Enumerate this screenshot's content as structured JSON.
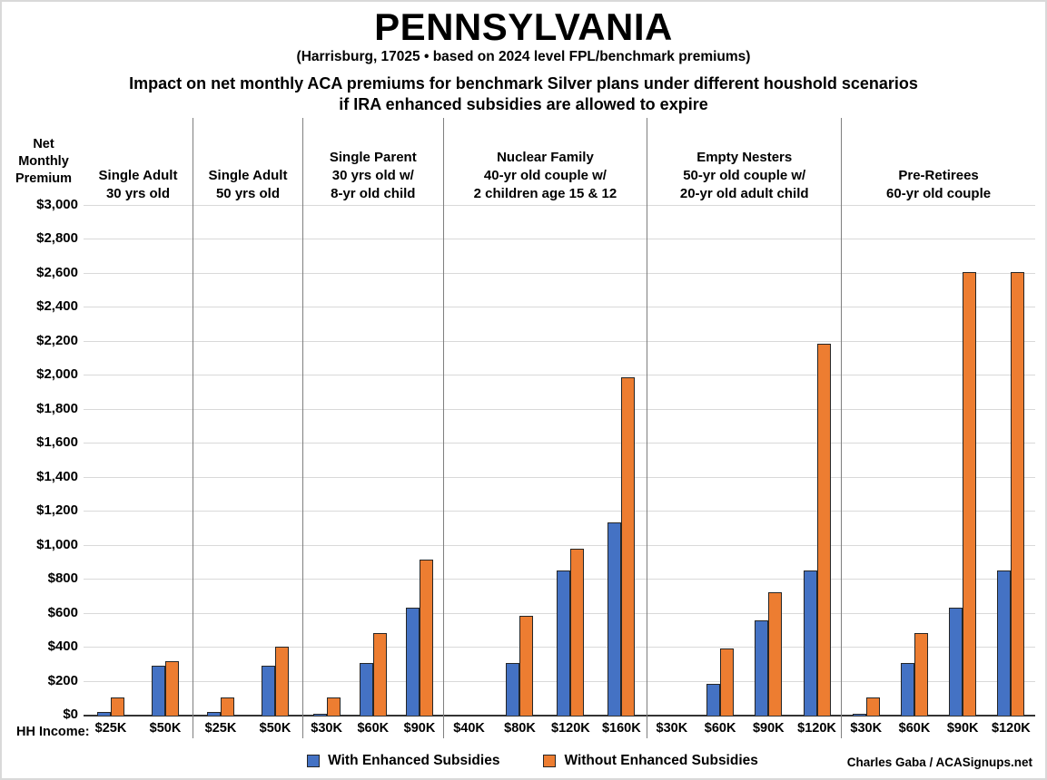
{
  "header": {
    "title": "PENNSYLVANIA",
    "subtitle": "(Harrisburg, 17025 • based on 2024 level FPL/benchmark premiums)",
    "heading_line1": "Impact on net monthly ACA premiums for benchmark Silver plans under different houshold scenarios",
    "heading_line2": "if IRA enhanced subsidies are allowed to expire"
  },
  "axis": {
    "y_title_lines": [
      "Net",
      "Monthly",
      "Premium"
    ],
    "hh_income_label": "HH Income:",
    "y_ticks": [
      "$3,000",
      "$2,800",
      "$2,600",
      "$2,400",
      "$2,200",
      "$2,000",
      "$1,800",
      "$1,600",
      "$1,400",
      "$1,200",
      "$1,000",
      "$800",
      "$600",
      "$400",
      "$200",
      "$0"
    ],
    "y_max": 3000
  },
  "legend": [
    {
      "label": "With Enhanced Subsidies",
      "color": "#4472C4"
    },
    {
      "label": "Without Enhanced Subsidies",
      "color": "#ED7D31"
    }
  ],
  "credit": "Charles Gaba / ACASignups.net",
  "chart_data": {
    "type": "bar",
    "title": "Impact on net monthly ACA premiums for benchmark Silver plans under different houshold scenarios if IRA enhanced subsidies are allowed to expire",
    "location": "Pennsylvania (Harrisburg, 17025)",
    "ylabel": "Net Monthly Premium ($)",
    "ylim": [
      0,
      3000
    ],
    "grid": true,
    "legend_position": "bottom",
    "series_names": [
      "With Enhanced Subsidies",
      "Without Enhanced Subsidies"
    ],
    "colors": {
      "with_enhanced": "#4472C4",
      "without_enhanced": "#ED7D31"
    },
    "groups": [
      {
        "label": [
          "Single Adult",
          "30 yrs old"
        ],
        "incomes": [
          "$25K",
          "$50K"
        ],
        "with_enhanced": [
          20,
          290
        ],
        "without_enhanced": [
          105,
          320
        ]
      },
      {
        "label": [
          "Single Adult",
          "50 yrs old"
        ],
        "incomes": [
          "$25K",
          "$50K"
        ],
        "with_enhanced": [
          20,
          290
        ],
        "without_enhanced": [
          105,
          405
        ]
      },
      {
        "label": [
          "Single Parent",
          "30 yrs old w/",
          "8-yr old child"
        ],
        "incomes": [
          "$30K",
          "$60K",
          "$90K"
        ],
        "with_enhanced": [
          5,
          305,
          635
        ],
        "without_enhanced": [
          105,
          485,
          915
        ]
      },
      {
        "label": [
          "Nuclear Family",
          "40-yr old couple w/",
          "2 children age 15 & 12"
        ],
        "incomes": [
          "$40K",
          "$80K",
          "$120K",
          "$160K"
        ],
        "with_enhanced": [
          0,
          305,
          850,
          1133
        ],
        "without_enhanced": [
          0,
          585,
          980,
          1990
        ]
      },
      {
        "label": [
          "Empty Nesters",
          "50-yr old couple w/",
          "20-yr old adult child"
        ],
        "incomes": [
          "$30K",
          "$60K",
          "$90K",
          "$120K"
        ],
        "with_enhanced": [
          0,
          185,
          560,
          850
        ],
        "without_enhanced": [
          0,
          390,
          725,
          2185
        ]
      },
      {
        "label": [
          "Pre-Retirees",
          "60-yr old couple"
        ],
        "incomes": [
          "$30K",
          "$60K",
          "$90K",
          "$120K"
        ],
        "with_enhanced": [
          5,
          305,
          635,
          850
        ],
        "without_enhanced": [
          105,
          485,
          2610,
          2610
        ]
      }
    ]
  }
}
